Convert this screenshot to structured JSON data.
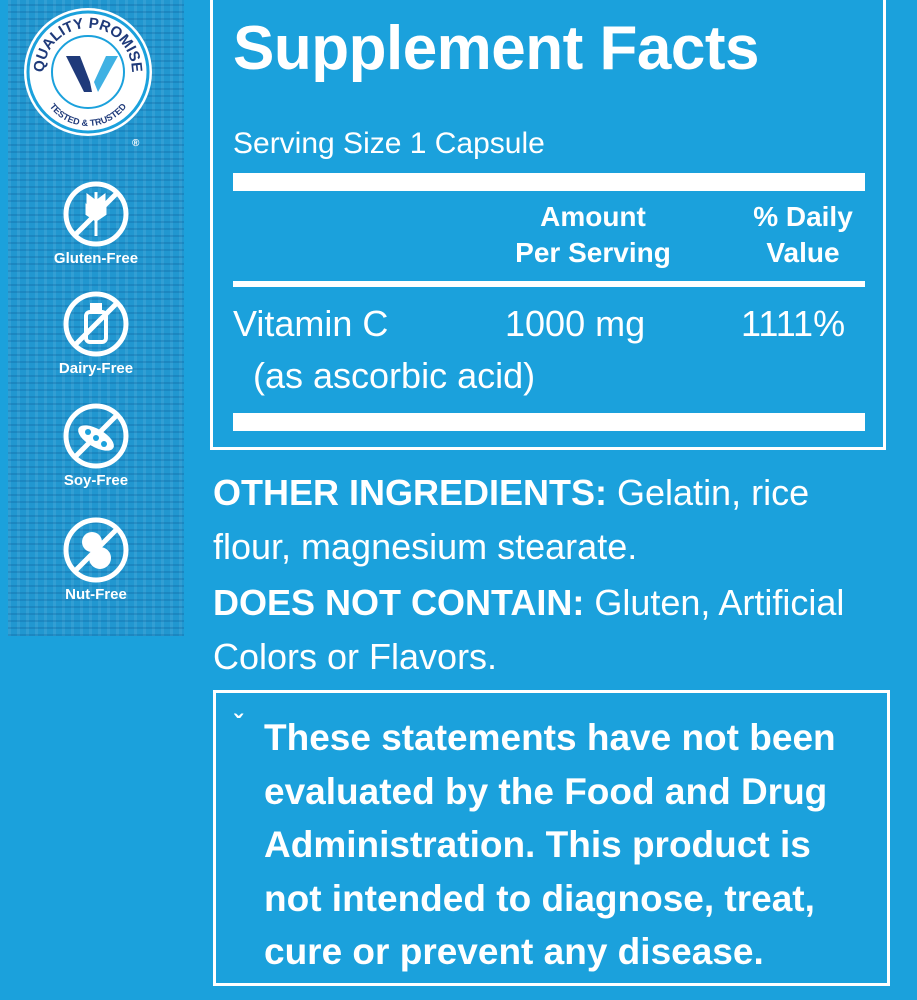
{
  "seal": {
    "top_text": "QUALITY PROMISE",
    "bottom_text": "TESTED & TRUSTED",
    "registered": "®"
  },
  "badges": [
    {
      "label": "Gluten-Free",
      "icon": "wheat-crossed-icon"
    },
    {
      "label": "Dairy-Free",
      "icon": "milk-bottle-crossed-icon"
    },
    {
      "label": "Soy-Free",
      "icon": "soybean-crossed-icon"
    },
    {
      "label": "Nut-Free",
      "icon": "peanut-crossed-icon"
    }
  ],
  "facts": {
    "title": "Supplement Facts",
    "serving_size": "Serving Size 1 Capsule",
    "col_amount": [
      "Amount",
      "Per Serving"
    ],
    "col_dv": [
      "% Daily",
      "Value"
    ],
    "rows": [
      {
        "name": "Vitamin C",
        "sub": "(as ascorbic acid)",
        "amount": "1000 mg",
        "dv": "1111%"
      }
    ]
  },
  "other_ingredients": {
    "label": "OTHER INGREDIENTS:",
    "text": " Gelatin, rice flour, magnesium stearate."
  },
  "does_not_contain": {
    "label": "DOES NOT CONTAIN:",
    "text": " Gluten, Artificial Colors or Flavors."
  },
  "disclaimer": {
    "mark": "ˇ",
    "text": "These statements have not been evaluated by the Food and Drug Administration. This product is not intended to diagnose, treat, cure or prevent any disease."
  }
}
